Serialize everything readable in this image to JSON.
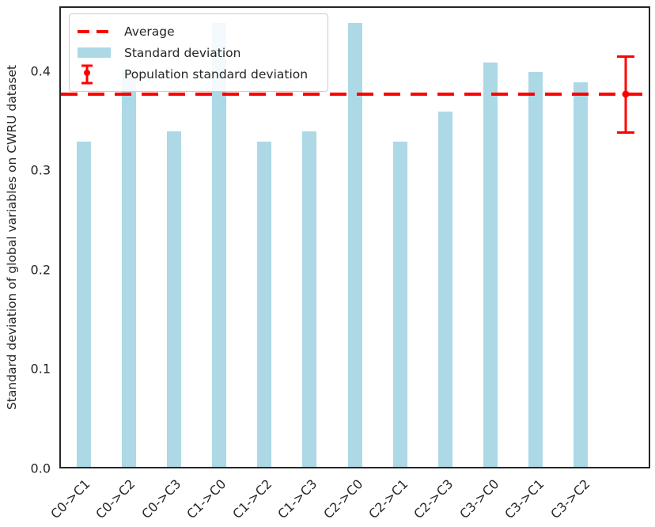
{
  "chart_data": {
    "type": "bar",
    "title": "",
    "xlabel": "",
    "ylabel": "Standard deviation of global variables on CWRU dataset",
    "categories": [
      "C0->C1",
      "C0->C2",
      "C0->C3",
      "C1->C0",
      "C1->C2",
      "C1->C3",
      "C2->C0",
      "C2->C1",
      "C2->C3",
      "C3->C0",
      "C3->C1",
      "C3->C2"
    ],
    "values": [
      0.33,
      0.4,
      0.34,
      0.45,
      0.33,
      0.34,
      0.45,
      0.33,
      0.36,
      0.41,
      0.4,
      0.39
    ],
    "average": 0.3775,
    "population_std": {
      "center": 0.3775,
      "error": 0.04
    },
    "ylim": [
      0,
      0.4653
    ],
    "ytick_labels": [
      "0.0",
      "0.1",
      "0.2",
      "0.3",
      "0.4"
    ],
    "x_tick_rotation": 45,
    "grid": false,
    "n_slots": 13,
    "errorbar_slot": 12.5,
    "legend_position": "upper left",
    "legend": [
      {
        "label": "Average",
        "glyph": "dashed-line",
        "color": "#ff0000"
      },
      {
        "label": "Standard deviation",
        "glyph": "patch",
        "color": "#add8e6"
      },
      {
        "label": "Population standard deviation",
        "glyph": "errorbar",
        "color": "#ff0000"
      }
    ],
    "colors": {
      "bar": "#add8e6",
      "average_line": "#ff0000",
      "errorbar": "#ff0000",
      "text": "#262626",
      "spine": "#262626"
    }
  }
}
